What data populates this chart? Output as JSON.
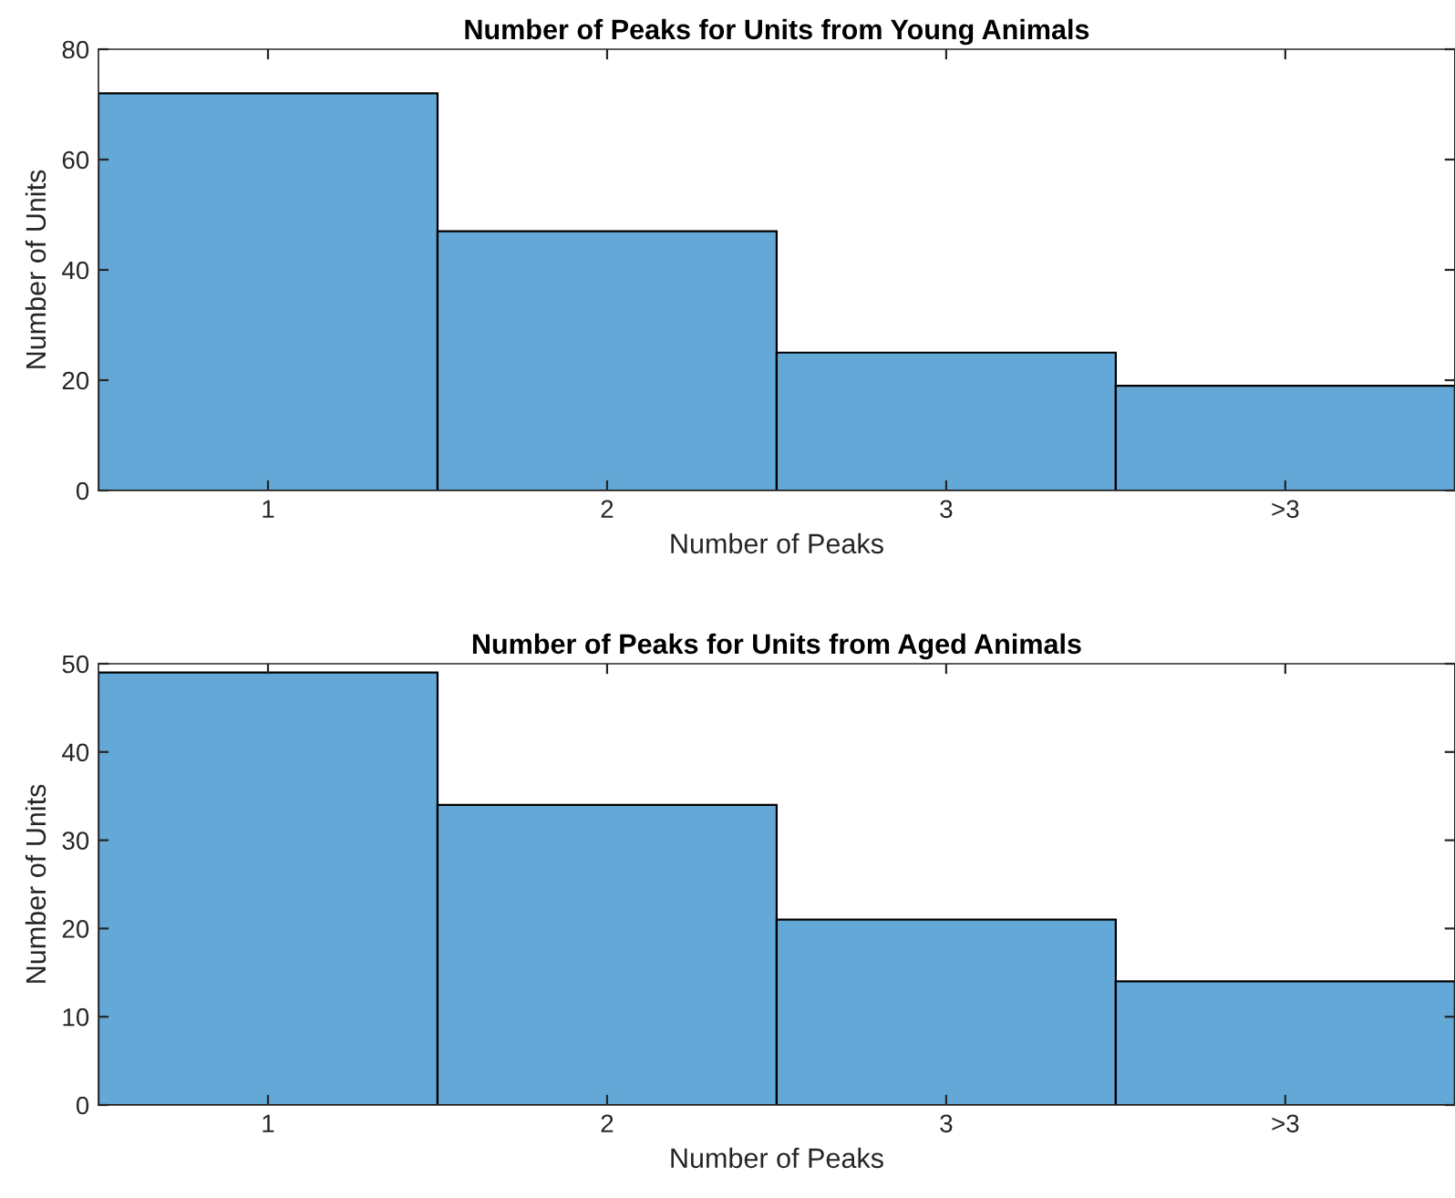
{
  "chart_data": [
    {
      "type": "bar",
      "title": "Number of Peaks for Units from Young Animals",
      "xlabel": "Number of Peaks",
      "ylabel": "Number of Units",
      "categories": [
        "1",
        "2",
        "3",
        ">3"
      ],
      "values": [
        72,
        47,
        25,
        19
      ],
      "color": "#63a8d6",
      "ylim": [
        0,
        80
      ],
      "yticks": [
        0,
        20,
        40,
        60,
        80
      ],
      "grid": false
    },
    {
      "type": "bar",
      "title": "Number of Peaks for Units from Aged Animals",
      "xlabel": "Number of Peaks",
      "ylabel": "Number of Units",
      "categories": [
        "1",
        "2",
        "3",
        ">3"
      ],
      "values": [
        49,
        34,
        21,
        14
      ],
      "color": "#63a8d6",
      "ylim": [
        0,
        50
      ],
      "yticks": [
        0,
        10,
        20,
        30,
        40,
        50
      ],
      "grid": false
    }
  ]
}
